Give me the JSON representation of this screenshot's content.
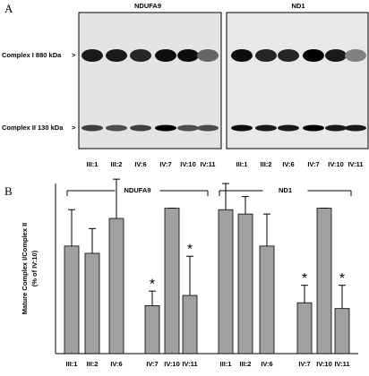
{
  "panel_a": {
    "label": "A",
    "blots": [
      {
        "title": "NDUFA9",
        "lanes": [
          "III:1",
          "III:2",
          "IV:6",
          "IV:7",
          "IV:10",
          "IV:11"
        ]
      },
      {
        "title": "ND1",
        "lanes": [
          "III:1",
          "III:2",
          "IV:6",
          "IV:7",
          "IV:10",
          "IV:11"
        ]
      }
    ],
    "rows": [
      "Complex I  880 kDa",
      "Complex II  130 kDa"
    ]
  },
  "chart_data": {
    "type": "bar",
    "panel_label": "B",
    "ylabel": [
      "Mature Complex I/Complex II",
      "(% of IV:10)"
    ],
    "ylim": [
      0,
      117
    ],
    "color": "#a0a0a0",
    "groups": [
      {
        "name": "NDUFA9",
        "categories": [
          "III:1",
          "III:2",
          "IV:6",
          "IV:7",
          "IV:10",
          "IV:11"
        ],
        "values": [
          74,
          69,
          93,
          33,
          100,
          40
        ],
        "errors": [
          25,
          17,
          27,
          10,
          0,
          27
        ],
        "markers": [
          null,
          null,
          null,
          "*",
          null,
          "*"
        ]
      },
      {
        "name": "ND1",
        "categories": [
          "III:1",
          "III:2",
          "IV:6",
          "IV:7",
          "IV:10",
          "IV:11"
        ],
        "values": [
          99,
          96,
          74,
          35,
          100,
          31
        ],
        "errors": [
          18,
          12,
          22,
          12,
          0,
          16
        ],
        "markers": [
          null,
          null,
          null,
          "*",
          null,
          "*"
        ]
      }
    ]
  }
}
